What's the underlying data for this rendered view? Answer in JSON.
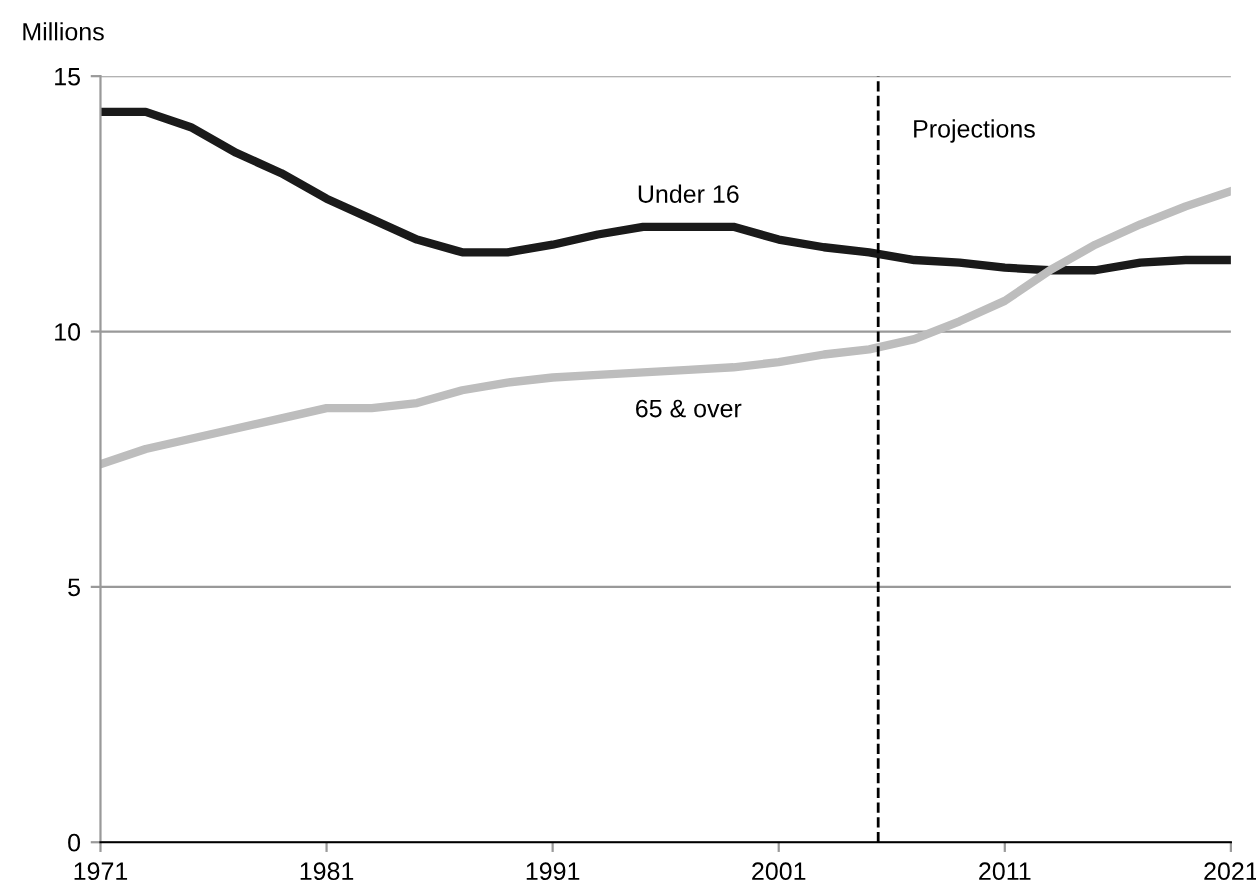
{
  "chart_data": {
    "type": "line",
    "ylabel": "Millions",
    "x": [
      1971,
      1973,
      1975,
      1977,
      1979,
      1981,
      1983,
      1985,
      1987,
      1989,
      1991,
      1993,
      1995,
      1997,
      1999,
      2001,
      2003,
      2005,
      2007,
      2009,
      2011,
      2013,
      2015,
      2017,
      2019,
      2021
    ],
    "series": [
      {
        "name": "Under 16",
        "color": "#1a1a1a",
        "values": [
          14.3,
          14.3,
          14.0,
          13.5,
          13.1,
          12.6,
          12.2,
          11.8,
          11.55,
          11.55,
          11.7,
          11.9,
          12.05,
          12.05,
          12.05,
          11.8,
          11.65,
          11.55,
          11.4,
          11.35,
          11.25,
          11.2,
          11.2,
          11.35,
          11.4,
          11.4
        ]
      },
      {
        "name": "65 & over",
        "color": "#bdbdbd",
        "values": [
          7.4,
          7.7,
          7.9,
          8.1,
          8.3,
          8.5,
          8.5,
          8.6,
          8.85,
          9.0,
          9.1,
          9.15,
          9.2,
          9.25,
          9.3,
          9.4,
          9.55,
          9.65,
          9.85,
          10.2,
          10.6,
          11.2,
          11.7,
          12.1,
          12.45,
          12.75
        ]
      }
    ],
    "xlim": [
      1971,
      2021
    ],
    "xticks": [
      1971,
      1981,
      1991,
      2001,
      2011,
      2021
    ],
    "ylim": [
      0,
      15
    ],
    "yticks": [
      0,
      5,
      10,
      15
    ],
    "grid": "y",
    "legend": false,
    "marker": "none",
    "line_style": "solid",
    "ref_lines": [
      {
        "axis": "x",
        "value": 2005.4,
        "label": "Projections",
        "color": "#000000",
        "line_style": "dashed"
      }
    ]
  }
}
